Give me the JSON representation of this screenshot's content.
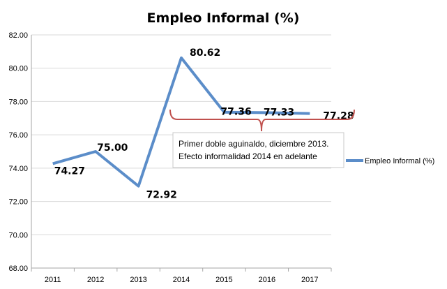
{
  "chart_data": {
    "type": "line",
    "title": "Empleo Informal (%)",
    "categories": [
      "2011",
      "2012",
      "2013",
      "2014",
      "2015",
      "2016",
      "2017"
    ],
    "series": [
      {
        "name": "Empleo Informal (%)",
        "values": [
          74.27,
          75.0,
          72.92,
          80.62,
          77.36,
          77.33,
          77.28
        ],
        "labels": [
          "74.27",
          "75.00",
          "72.92",
          "80.62",
          "77.36",
          "77.33",
          "77.28"
        ],
        "color": "#5b8dc9"
      }
    ],
    "ylim": [
      68,
      82
    ],
    "yticks": [
      "68.00",
      "70.00",
      "72.00",
      "74.00",
      "76.00",
      "78.00",
      "80.00",
      "82.00"
    ],
    "grid": true,
    "legend_position": "right",
    "annotation": {
      "lines": [
        "Primer doble aguinaldo, diciembre 2013.",
        "Efecto informalidad 2014 en adelante"
      ],
      "bracket_color": "#c0504d"
    }
  }
}
